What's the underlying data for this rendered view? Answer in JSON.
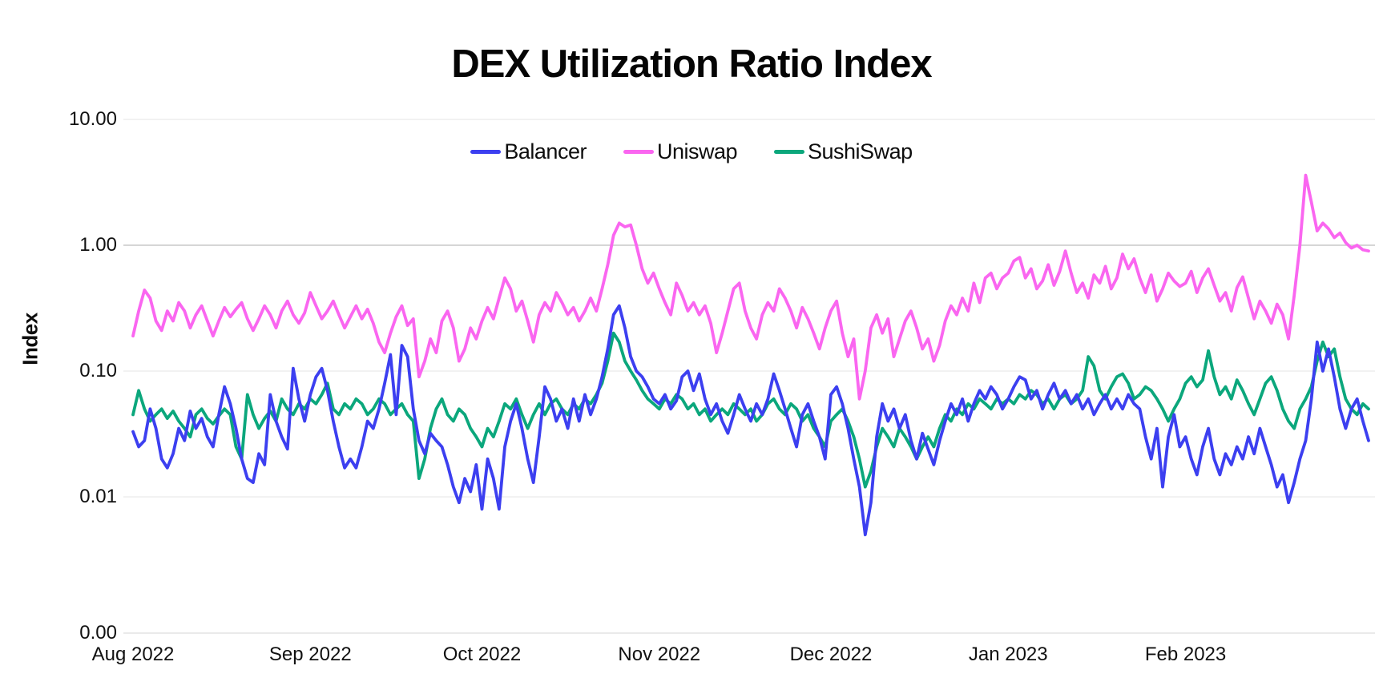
{
  "colors": {
    "background": "#ffffff",
    "grid_minor": "#ededed",
    "grid_major": "#c9c9c9",
    "axis_line": "#e3e3e3",
    "text": "#0d0d0d"
  },
  "chart_data": {
    "type": "line",
    "title": "DEX Utilization Ratio Index",
    "ylabel": "Index",
    "xlabel": "",
    "y_scale": "log",
    "grid": "horizontal",
    "legend_position": "top-center",
    "y_ticks": [
      {
        "label": "10.00",
        "value": 10
      },
      {
        "label": "1.00",
        "value": 1
      },
      {
        "label": "0.10",
        "value": 0.1
      },
      {
        "label": "0.01",
        "value": 0.01
      },
      {
        "label": "0.00",
        "value": 0
      }
    ],
    "x_ticks": [
      {
        "label": "Aug 2022",
        "day": 0
      },
      {
        "label": "Sep 2022",
        "day": 31
      },
      {
        "label": "Oct 2022",
        "day": 61
      },
      {
        "label": "Nov 2022",
        "day": 92
      },
      {
        "label": "Dec 2022",
        "day": 122
      },
      {
        "label": "Jan 2023",
        "day": 153
      },
      {
        "label": "Feb 2023",
        "day": 184
      }
    ],
    "x_unit": "day",
    "days_total": 217,
    "series": [
      {
        "name": "Balancer",
        "color": "#3c3ff0",
        "values": [
          0.033,
          0.025,
          0.028,
          0.05,
          0.035,
          0.02,
          0.017,
          0.022,
          0.035,
          0.028,
          0.048,
          0.035,
          0.042,
          0.03,
          0.025,
          0.045,
          0.075,
          0.055,
          0.035,
          0.02,
          0.014,
          0.013,
          0.022,
          0.018,
          0.065,
          0.04,
          0.03,
          0.024,
          0.105,
          0.06,
          0.04,
          0.065,
          0.09,
          0.105,
          0.07,
          0.04,
          0.025,
          0.017,
          0.02,
          0.017,
          0.025,
          0.04,
          0.035,
          0.05,
          0.08,
          0.135,
          0.045,
          0.16,
          0.13,
          0.05,
          0.028,
          0.022,
          0.032,
          0.028,
          0.025,
          0.018,
          0.012,
          0.009,
          0.014,
          0.011,
          0.018,
          0.008,
          0.02,
          0.014,
          0.008,
          0.025,
          0.04,
          0.055,
          0.035,
          0.02,
          0.013,
          0.03,
          0.075,
          0.06,
          0.04,
          0.05,
          0.035,
          0.06,
          0.04,
          0.065,
          0.045,
          0.06,
          0.09,
          0.15,
          0.28,
          0.33,
          0.22,
          0.13,
          0.1,
          0.09,
          0.075,
          0.06,
          0.055,
          0.065,
          0.05,
          0.058,
          0.09,
          0.1,
          0.07,
          0.095,
          0.06,
          0.045,
          0.055,
          0.04,
          0.032,
          0.045,
          0.065,
          0.05,
          0.04,
          0.055,
          0.045,
          0.06,
          0.095,
          0.07,
          0.05,
          0.035,
          0.025,
          0.045,
          0.055,
          0.04,
          0.03,
          0.02,
          0.065,
          0.075,
          0.055,
          0.035,
          0.02,
          0.012,
          0.005,
          0.009,
          0.03,
          0.055,
          0.04,
          0.05,
          0.035,
          0.045,
          0.028,
          0.02,
          0.032,
          0.024,
          0.018,
          0.028,
          0.04,
          0.055,
          0.045,
          0.06,
          0.04,
          0.055,
          0.07,
          0.06,
          0.075,
          0.065,
          0.05,
          0.06,
          0.075,
          0.09,
          0.085,
          0.06,
          0.07,
          0.05,
          0.065,
          0.08,
          0.06,
          0.07,
          0.055,
          0.065,
          0.05,
          0.06,
          0.045,
          0.055,
          0.065,
          0.05,
          0.06,
          0.05,
          0.065,
          0.055,
          0.05,
          0.03,
          0.02,
          0.035,
          0.012,
          0.03,
          0.045,
          0.025,
          0.03,
          0.02,
          0.015,
          0.025,
          0.035,
          0.02,
          0.015,
          0.022,
          0.018,
          0.025,
          0.02,
          0.03,
          0.022,
          0.035,
          0.025,
          0.018,
          0.012,
          0.015,
          0.009,
          0.013,
          0.02,
          0.028,
          0.06,
          0.17,
          0.1,
          0.15,
          0.09,
          0.05,
          0.035,
          0.05,
          0.06,
          0.04,
          0.028
        ]
      },
      {
        "name": "Uniswap",
        "color": "#fa66f0",
        "values": [
          0.19,
          0.3,
          0.44,
          0.38,
          0.25,
          0.21,
          0.3,
          0.25,
          0.35,
          0.3,
          0.22,
          0.28,
          0.33,
          0.25,
          0.19,
          0.25,
          0.32,
          0.27,
          0.31,
          0.35,
          0.26,
          0.21,
          0.26,
          0.33,
          0.28,
          0.22,
          0.3,
          0.36,
          0.28,
          0.24,
          0.29,
          0.42,
          0.33,
          0.26,
          0.3,
          0.36,
          0.28,
          0.22,
          0.27,
          0.33,
          0.26,
          0.31,
          0.24,
          0.17,
          0.14,
          0.2,
          0.27,
          0.33,
          0.23,
          0.26,
          0.09,
          0.12,
          0.18,
          0.14,
          0.25,
          0.3,
          0.22,
          0.12,
          0.15,
          0.22,
          0.18,
          0.25,
          0.32,
          0.26,
          0.38,
          0.55,
          0.45,
          0.3,
          0.36,
          0.25,
          0.17,
          0.28,
          0.35,
          0.3,
          0.42,
          0.35,
          0.28,
          0.32,
          0.25,
          0.3,
          0.38,
          0.3,
          0.45,
          0.7,
          1.2,
          1.5,
          1.4,
          1.45,
          1.0,
          0.65,
          0.5,
          0.6,
          0.45,
          0.35,
          0.28,
          0.5,
          0.4,
          0.3,
          0.35,
          0.28,
          0.33,
          0.24,
          0.14,
          0.2,
          0.3,
          0.45,
          0.5,
          0.3,
          0.22,
          0.18,
          0.28,
          0.35,
          0.3,
          0.45,
          0.38,
          0.3,
          0.22,
          0.32,
          0.26,
          0.2,
          0.15,
          0.22,
          0.3,
          0.36,
          0.2,
          0.13,
          0.18,
          0.06,
          0.1,
          0.22,
          0.28,
          0.2,
          0.26,
          0.13,
          0.18,
          0.25,
          0.3,
          0.22,
          0.15,
          0.18,
          0.12,
          0.16,
          0.25,
          0.33,
          0.28,
          0.38,
          0.3,
          0.5,
          0.35,
          0.55,
          0.6,
          0.45,
          0.55,
          0.6,
          0.75,
          0.8,
          0.55,
          0.65,
          0.45,
          0.52,
          0.7,
          0.48,
          0.62,
          0.9,
          0.6,
          0.42,
          0.5,
          0.38,
          0.58,
          0.5,
          0.68,
          0.45,
          0.55,
          0.85,
          0.65,
          0.78,
          0.55,
          0.42,
          0.58,
          0.36,
          0.45,
          0.6,
          0.52,
          0.47,
          0.5,
          0.62,
          0.42,
          0.55,
          0.65,
          0.48,
          0.36,
          0.42,
          0.3,
          0.46,
          0.56,
          0.38,
          0.26,
          0.36,
          0.3,
          0.24,
          0.34,
          0.28,
          0.18,
          0.4,
          1.0,
          3.6,
          2.2,
          1.3,
          1.5,
          1.35,
          1.15,
          1.25,
          1.05,
          0.95,
          1.0,
          0.92,
          0.9
        ]
      },
      {
        "name": "SushiSwap",
        "color": "#0ba77c",
        "values": [
          0.045,
          0.07,
          0.05,
          0.04,
          0.045,
          0.05,
          0.042,
          0.048,
          0.04,
          0.035,
          0.03,
          0.045,
          0.05,
          0.042,
          0.038,
          0.044,
          0.05,
          0.045,
          0.025,
          0.02,
          0.065,
          0.045,
          0.035,
          0.042,
          0.048,
          0.04,
          0.06,
          0.05,
          0.045,
          0.055,
          0.05,
          0.06,
          0.055,
          0.065,
          0.08,
          0.05,
          0.045,
          0.055,
          0.05,
          0.06,
          0.055,
          0.045,
          0.05,
          0.06,
          0.055,
          0.045,
          0.05,
          0.055,
          0.045,
          0.04,
          0.014,
          0.02,
          0.035,
          0.05,
          0.06,
          0.045,
          0.04,
          0.05,
          0.045,
          0.035,
          0.03,
          0.025,
          0.035,
          0.03,
          0.04,
          0.055,
          0.05,
          0.06,
          0.045,
          0.035,
          0.045,
          0.055,
          0.045,
          0.055,
          0.06,
          0.05,
          0.045,
          0.055,
          0.05,
          0.06,
          0.055,
          0.065,
          0.08,
          0.12,
          0.2,
          0.17,
          0.12,
          0.1,
          0.085,
          0.07,
          0.06,
          0.055,
          0.05,
          0.06,
          0.055,
          0.065,
          0.06,
          0.05,
          0.055,
          0.045,
          0.05,
          0.04,
          0.045,
          0.05,
          0.045,
          0.055,
          0.05,
          0.045,
          0.05,
          0.04,
          0.045,
          0.055,
          0.06,
          0.05,
          0.045,
          0.055,
          0.05,
          0.04,
          0.045,
          0.035,
          0.03,
          0.025,
          0.04,
          0.045,
          0.05,
          0.04,
          0.03,
          0.02,
          0.012,
          0.016,
          0.025,
          0.035,
          0.03,
          0.025,
          0.035,
          0.03,
          0.025,
          0.02,
          0.025,
          0.03,
          0.025,
          0.035,
          0.045,
          0.04,
          0.05,
          0.045,
          0.055,
          0.05,
          0.06,
          0.055,
          0.05,
          0.06,
          0.055,
          0.06,
          0.055,
          0.065,
          0.06,
          0.07,
          0.065,
          0.055,
          0.06,
          0.05,
          0.06,
          0.065,
          0.055,
          0.06,
          0.07,
          0.13,
          0.11,
          0.07,
          0.06,
          0.075,
          0.09,
          0.095,
          0.08,
          0.06,
          0.065,
          0.075,
          0.07,
          0.06,
          0.05,
          0.04,
          0.05,
          0.06,
          0.08,
          0.09,
          0.075,
          0.085,
          0.145,
          0.09,
          0.065,
          0.075,
          0.06,
          0.085,
          0.07,
          0.055,
          0.045,
          0.06,
          0.08,
          0.09,
          0.07,
          0.05,
          0.04,
          0.035,
          0.05,
          0.06,
          0.075,
          0.12,
          0.17,
          0.13,
          0.15,
          0.09,
          0.06,
          0.05,
          0.045,
          0.055,
          0.05
        ]
      }
    ]
  }
}
